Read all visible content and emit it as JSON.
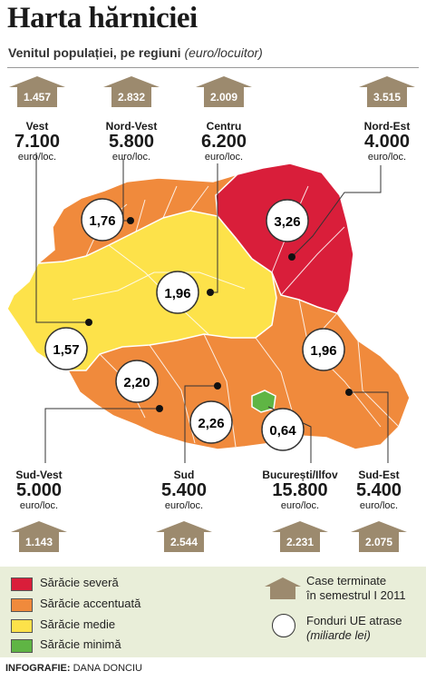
{
  "title": "Harta hărniciei",
  "subtitle": "Venitul populației, pe regiuni",
  "subtitle_unit": "(euro/locuitor)",
  "income_unit": "euro/loc.",
  "colors": {
    "severa": "#d91e3a",
    "accentuata": "#f08a3c",
    "medie": "#fde24a",
    "minima": "#5fb544",
    "house": "#9c8a6e"
  },
  "regions": [
    {
      "id": "vest",
      "name": "Vest",
      "income": "7.100",
      "houses": "1.457",
      "funds": "1,57",
      "level": "medie"
    },
    {
      "id": "nord-vest",
      "name": "Nord-Vest",
      "income": "5.800",
      "houses": "2.832",
      "funds": "1,76",
      "level": "accentuata"
    },
    {
      "id": "centru",
      "name": "Centru",
      "income": "6.200",
      "houses": "2.009",
      "funds": "1,96",
      "level": "medie"
    },
    {
      "id": "nord-est",
      "name": "Nord-Est",
      "income": "4.000",
      "houses": "3.515",
      "funds": "3,26",
      "level": "severa"
    },
    {
      "id": "sud-vest",
      "name": "Sud-Vest",
      "income": "5.000",
      "houses": "1.143",
      "funds": "2,20",
      "level": "accentuata"
    },
    {
      "id": "sud",
      "name": "Sud",
      "income": "5.400",
      "houses": "2.544",
      "funds": "2,26",
      "level": "accentuata"
    },
    {
      "id": "bucuresti",
      "name": "București/Ilfov",
      "income": "15.800",
      "houses": "2.231",
      "funds": "0,64",
      "level": "minima"
    },
    {
      "id": "sud-est",
      "name": "Sud-Est",
      "income": "5.400",
      "houses": "2.075",
      "funds": "1,96",
      "level": "accentuata"
    }
  ],
  "legend": {
    "severa": "Sărăcie severă",
    "accentuata": "Sărăcie accentuată",
    "medie": "Sărăcie medie",
    "minima": "Sărăcie minimă",
    "houses_line1": "Case terminate",
    "houses_line2": "în semestrul I 2011",
    "funds_line1": "Fonduri UE atrase",
    "funds_line2": "(miliarde lei)"
  },
  "credit_label": "INFOGRAFIE:",
  "credit_name": "DANA DONCIU"
}
